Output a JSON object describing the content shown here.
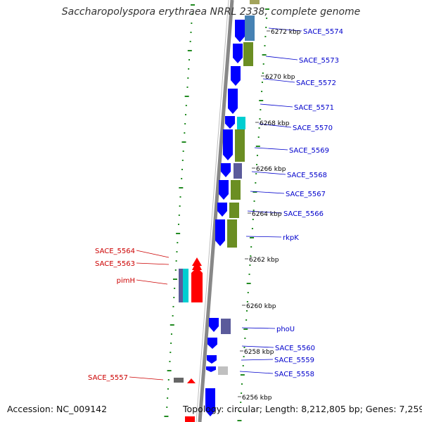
{
  "title": "Saccharopolyspora erythraea NRRL 2338, complete genome",
  "footer": {
    "accession": "Accession: NC_009142",
    "topology": "Topology: circular; Length: 8,212,805 bp; Genes: 7,259"
  },
  "colors": {
    "forward_gene": "#0000ff",
    "reverse_gene": "#ff0000",
    "forward_label": "#0000cc",
    "reverse_label": "#cc0000",
    "tick": "#228b22",
    "backbone": "#888888",
    "cog_green": "#6b8e23",
    "cog_steel": "#4682b4",
    "cog_cyan": "#00ced1",
    "cog_slate": "#5b5b9b",
    "cog_olive": "#a3a35b",
    "cog_silver": "#c0c0c0"
  },
  "scale_labels": [
    "6272 kbp",
    "6270 kbp",
    "6268 kbp",
    "6266 kbp",
    "6264 kbp",
    "6262 kbp",
    "6260 kbp",
    "6258 kbp",
    "6256 kbp"
  ],
  "forward_gene_labels": [
    "SACE_5574",
    "SACE_5573",
    "SACE_5572",
    "SACE_5571",
    "SACE_5570",
    "SACE_5569",
    "SACE_5568",
    "SACE_5567",
    "SACE_5566",
    "rkpK",
    "phoU",
    "SACE_5560",
    "SACE_5559",
    "SACE_5558"
  ],
  "reverse_gene_labels": [
    "SACE_5564",
    "SACE_5563",
    "pimH",
    "SACE_5557"
  ]
}
